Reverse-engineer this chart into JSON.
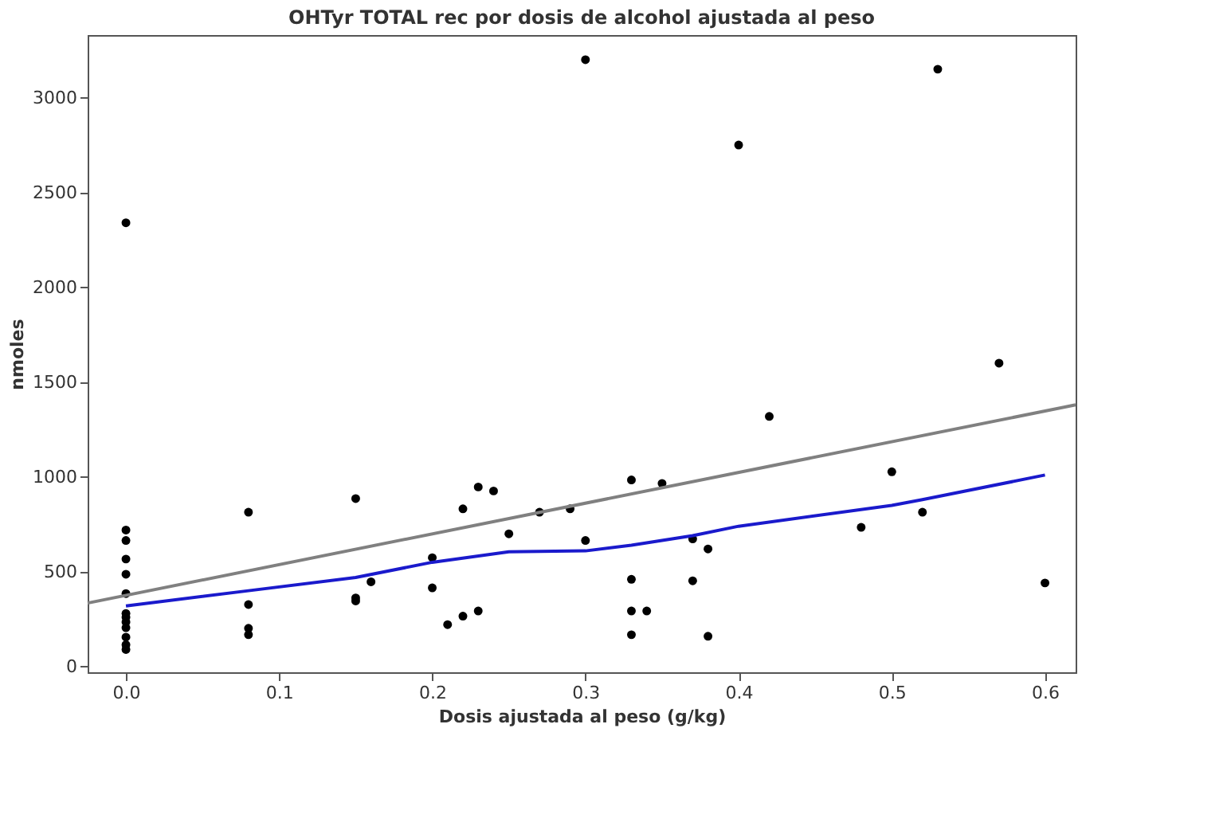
{
  "chart_data": {
    "type": "scatter",
    "title": "OHTyr TOTAL rec por dosis de alcohol ajustada al peso",
    "xlabel": "Dosis ajustada al peso (g/kg)",
    "ylabel": "nmoles",
    "xlim": [
      -0.025,
      0.62
    ],
    "ylim": [
      -30,
      3330
    ],
    "xticks": [
      {
        "value": 0,
        "label": "0.0"
      },
      0.1,
      0.2,
      0.3,
      0.4,
      0.5,
      0.6
    ],
    "yticks": [
      0,
      500,
      1000,
      1500,
      2000,
      2500,
      3000
    ],
    "grid": false,
    "series": [
      {
        "marker": "circle",
        "color": "#000000",
        "x": [
          0,
          0,
          0,
          0,
          0,
          0,
          0,
          0,
          0,
          0,
          0,
          0,
          0,
          0.08,
          0.08,
          0.08,
          0.08,
          0.15,
          0.15,
          0.15,
          0.16,
          0.2,
          0.2,
          0.21,
          0.22,
          0.22,
          0.23,
          0.23,
          0.24,
          0.25,
          0.27,
          0.29,
          0.3,
          0.3,
          0.33,
          0.33,
          0.33,
          0.33,
          0.34,
          0.35,
          0.37,
          0.37,
          0.38,
          0.38,
          0.4,
          0.42,
          0.48,
          0.5,
          0.52,
          0.53,
          0.57,
          0.6
        ],
        "values": [
          2340,
          720,
          665,
          567,
          487,
          385,
          280,
          260,
          235,
          205,
          155,
          115,
          90,
          814,
          327,
          202,
          168,
          886,
          362,
          346,
          447,
          574,
          415,
          221,
          832,
          266,
          947,
          293,
          926,
          700,
          814,
          832,
          665,
          3200,
          984,
          460,
          293,
          168,
          293,
          966,
          673,
          452,
          620,
          160,
          2750,
          1319,
          734,
          1027,
          814,
          3150,
          1600,
          441
        ]
      },
      {
        "type": "line",
        "color": "#808080",
        "line_style": "solid",
        "x": [
          -0.025,
          0.62
        ],
        "values": [
          335,
          1380
        ]
      },
      {
        "type": "line",
        "color": "#1a1acc",
        "line_style": "solid",
        "x": [
          0,
          0.08,
          0.15,
          0.2,
          0.25,
          0.3,
          0.33,
          0.37,
          0.4,
          0.5,
          0.52,
          0.6
        ],
        "values": [
          320,
          400,
          470,
          550,
          605,
          610,
          640,
          690,
          740,
          850,
          880,
          1010
        ]
      }
    ]
  }
}
